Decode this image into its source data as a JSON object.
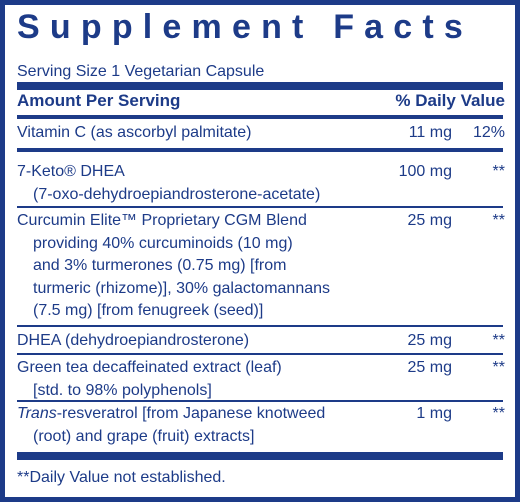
{
  "title": "Supplement Facts",
  "serving_size": "Serving Size 1 Vegetarian Capsule",
  "header": {
    "amount": "Amount Per Serving",
    "daily_value": "% Daily Value"
  },
  "rows": [
    {
      "lines": [
        "Vitamin C (as ascorbyl palmitate)"
      ],
      "amount": "11 mg",
      "daily_value": "12%"
    },
    {
      "lines": [
        "7-Keto® DHEA",
        "(7-oxo-dehydroepiandrosterone-acetate)"
      ],
      "amount": "100 mg",
      "daily_value": "**"
    },
    {
      "lines": [
        "Curcumin Elite™ Proprietary CGM Blend",
        "providing 40% curcuminoids (10 mg)",
        "and 3% turmerones (0.75 mg) [from",
        "turmeric (rhizome)], 30% galactomannans",
        "(7.5 mg) [from fenugreek (seed)]"
      ],
      "amount": "25 mg",
      "daily_value": "**"
    },
    {
      "lines": [
        "DHEA (dehydroepiandrosterone)"
      ],
      "amount": "25 mg",
      "daily_value": "**"
    },
    {
      "lines": [
        "Green tea decaffeinated extract (leaf)",
        "[std. to 98% polyphenols]"
      ],
      "amount": "25 mg",
      "daily_value": "**"
    },
    {
      "lines": [
        {
          "italic": "Trans",
          "text": "-resveratrol [from Japanese knotweed"
        },
        "(root) and grape (fruit) extracts]"
      ],
      "amount": "1 mg",
      "daily_value": "**"
    }
  ],
  "footnote": "**Daily Value not established."
}
